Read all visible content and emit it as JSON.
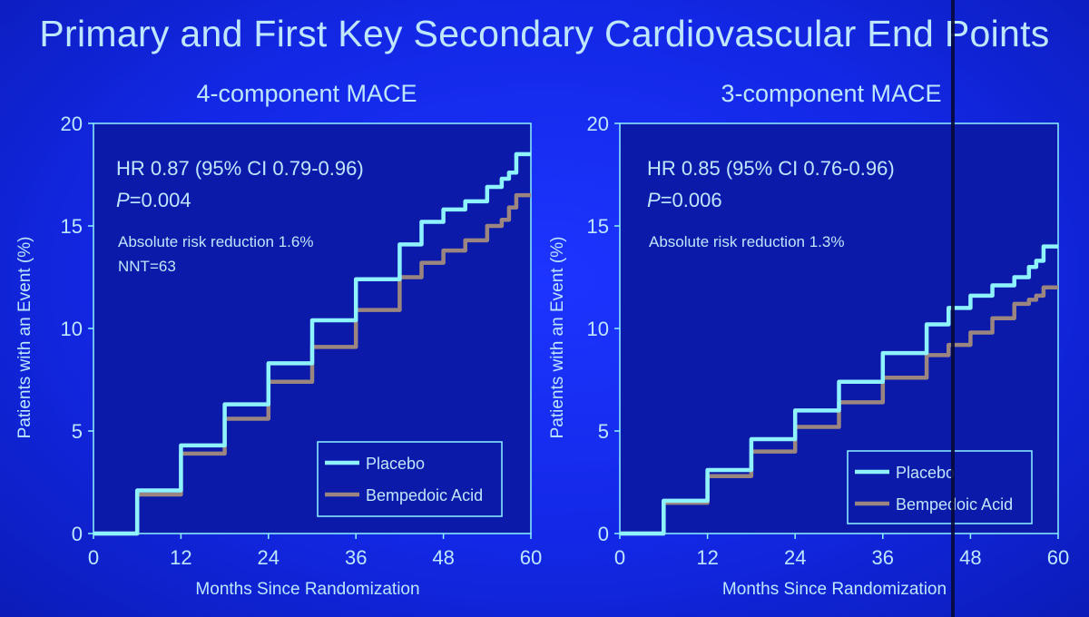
{
  "slide": {
    "title": "Primary and First Key Secondary Cardiovascular End Points"
  },
  "colors": {
    "background": "#1328e6",
    "plot_area": "#0b1aa8",
    "placebo": "#8ff3ff",
    "bempedoic": "#9a8580",
    "text": "#bfe6ff"
  },
  "chart_data": [
    {
      "type": "line",
      "title": "4-component MACE",
      "xlabel": "Months Since Randomization",
      "ylabel": "Patients with an Event (%)",
      "xlim": [
        0,
        60
      ],
      "ylim": [
        0,
        20
      ],
      "xticks": [
        "0",
        "12",
        "24",
        "36",
        "48",
        "60"
      ],
      "yticks": [
        "0",
        "5",
        "10",
        "15",
        "20"
      ],
      "annotations": {
        "hr": "HR 0.87 (95% CI 0.79-0.96)",
        "p_italic": "P",
        "p_value": "=0.004",
        "arr": "Absolute risk reduction 1.6%",
        "nnt": "NNT=63"
      },
      "legend_position": "bottom-right",
      "series": [
        {
          "name": "Placebo",
          "x": [
            0,
            6,
            12,
            18,
            24,
            30,
            36,
            42,
            45,
            48,
            51,
            54,
            56,
            57,
            58,
            60
          ],
          "values": [
            0,
            2.1,
            4.3,
            6.3,
            8.3,
            10.4,
            12.4,
            14.1,
            15.2,
            15.8,
            16.2,
            16.9,
            17.3,
            17.6,
            18.5,
            18.5
          ]
        },
        {
          "name": "Bempedoic Acid",
          "x": [
            0,
            6,
            12,
            18,
            24,
            30,
            36,
            42,
            45,
            48,
            51,
            54,
            56,
            57,
            58,
            60
          ],
          "values": [
            0,
            1.9,
            3.9,
            5.6,
            7.4,
            9.1,
            10.9,
            12.5,
            13.2,
            13.8,
            14.3,
            15.0,
            15.3,
            15.9,
            16.5,
            16.5
          ]
        }
      ]
    },
    {
      "type": "line",
      "title": "3-component MACE",
      "xlabel": "Months Since Randomization",
      "ylabel": "Patients with an Event (%)",
      "xlim": [
        0,
        60
      ],
      "ylim": [
        0,
        20
      ],
      "xticks": [
        "0",
        "12",
        "24",
        "36",
        "48",
        "60"
      ],
      "yticks": [
        "0",
        "5",
        "10",
        "15",
        "20"
      ],
      "annotations": {
        "hr": "HR 0.85 (95% CI 0.76-0.96)",
        "p_italic": "P",
        "p_value": "=0.006",
        "arr": "Absolute risk reduction 1.3%",
        "nnt": ""
      },
      "legend_position": "bottom-right",
      "series": [
        {
          "name": "Placebo",
          "x": [
            0,
            6,
            12,
            18,
            24,
            30,
            36,
            42,
            45,
            48,
            51,
            54,
            56,
            57,
            58,
            60
          ],
          "values": [
            0,
            1.6,
            3.1,
            4.6,
            6.0,
            7.4,
            8.8,
            10.2,
            11.0,
            11.6,
            12.1,
            12.5,
            13.0,
            13.3,
            14.0,
            14.0
          ]
        },
        {
          "name": "Bempedoic Acid",
          "x": [
            0,
            6,
            12,
            18,
            24,
            30,
            36,
            42,
            45,
            48,
            51,
            54,
            56,
            57,
            58,
            60
          ],
          "values": [
            0,
            1.5,
            2.8,
            4.0,
            5.2,
            6.4,
            7.6,
            8.7,
            9.2,
            9.8,
            10.5,
            11.2,
            11.4,
            11.6,
            12.0,
            12.0
          ]
        }
      ]
    }
  ]
}
